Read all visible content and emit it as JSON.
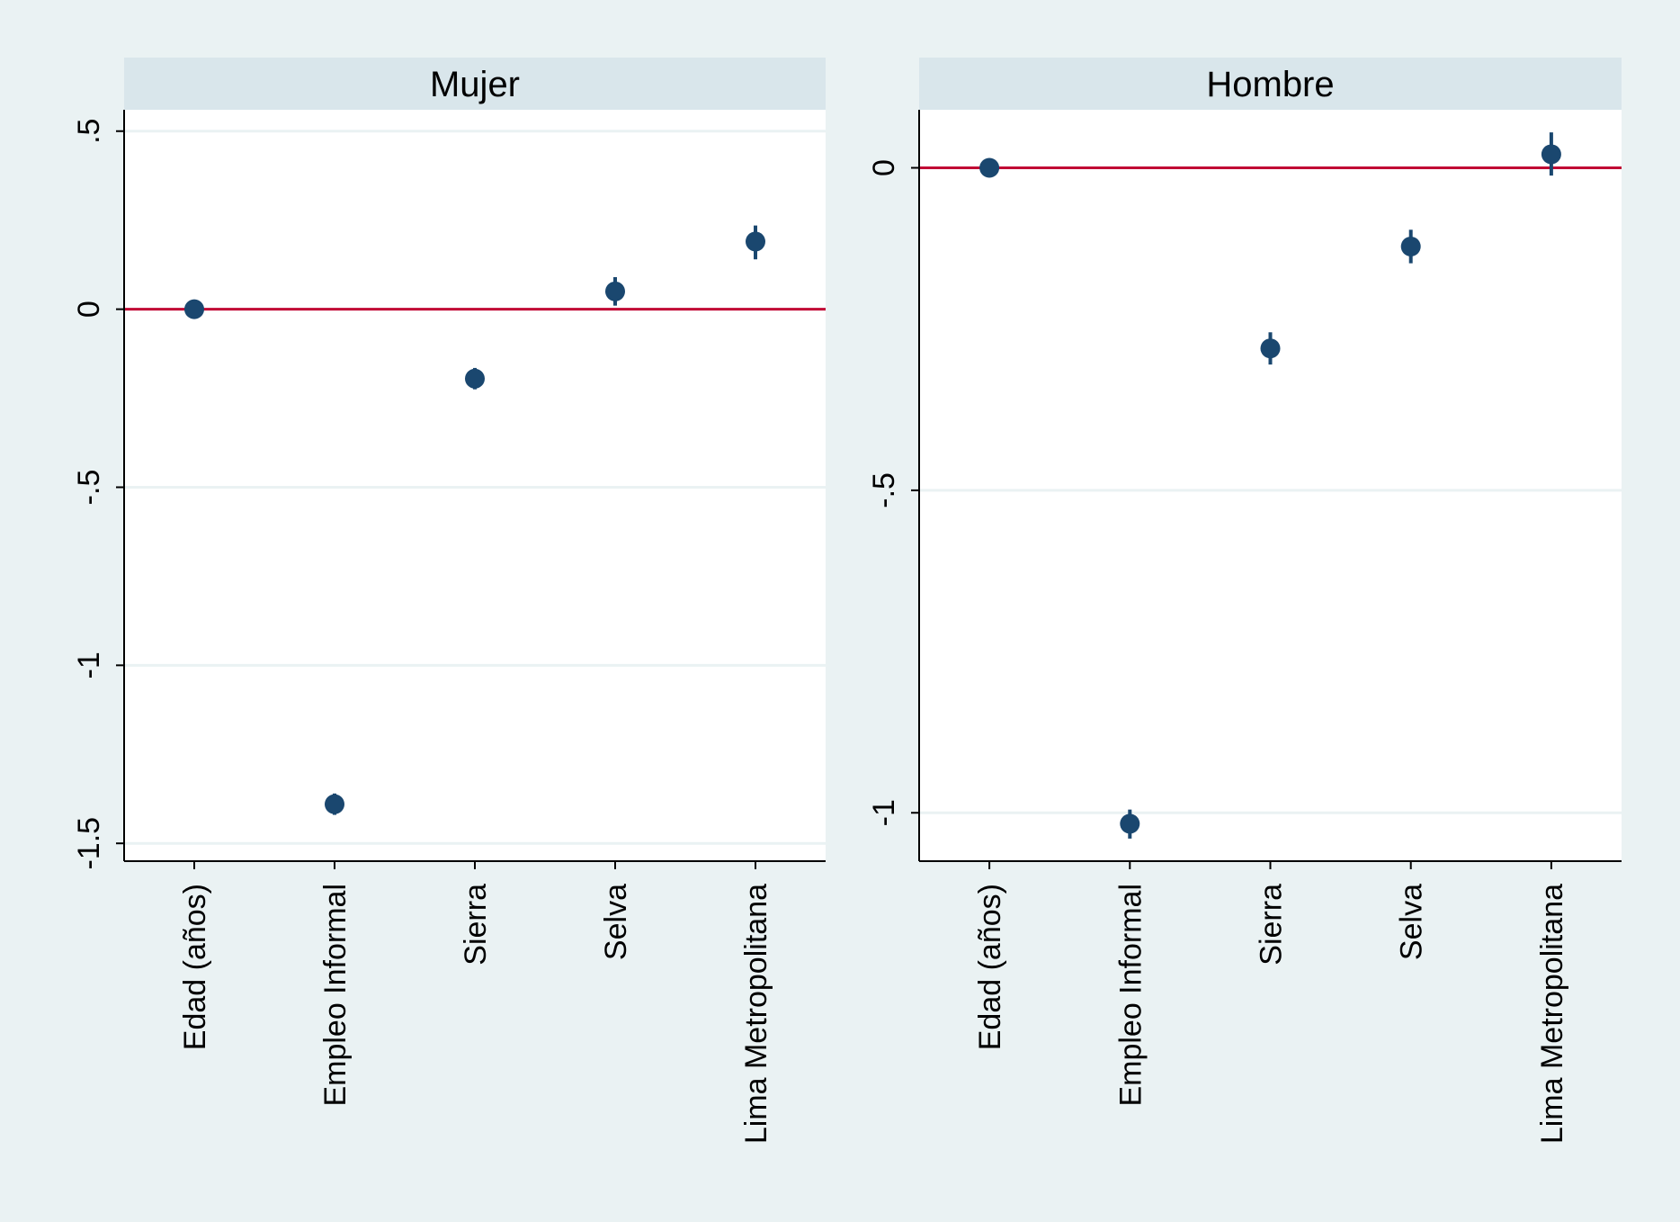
{
  "colors": {
    "background": "#eaf2f3",
    "plot_region": "#ffffff",
    "strip": "#d9e6eb",
    "gridline": "#eaf2f3",
    "marker": "#1a476f",
    "reference_line": "#c10534",
    "axis": "#000000"
  },
  "chart_data": [
    {
      "type": "scatter",
      "title": "Mujer",
      "categories": [
        "Edad (años)",
        "Empleo Informal",
        "Sierra",
        "Selva",
        "Lima Metropolitana"
      ],
      "values": [
        0.0,
        -1.39,
        -0.195,
        0.05,
        0.19
      ],
      "ci_low": [
        -0.005,
        -1.42,
        -0.225,
        0.01,
        0.14
      ],
      "ci_high": [
        0.005,
        -1.36,
        -0.165,
        0.09,
        0.235
      ],
      "reference_line": 0,
      "ylim": [
        -1.55,
        0.56
      ],
      "yticks": [
        0.5,
        0,
        -0.5,
        -1,
        -1.5
      ],
      "ytick_labels": [
        ".5",
        "0",
        "-.5",
        "-1",
        "-1.5"
      ],
      "grid": true
    },
    {
      "type": "scatter",
      "title": "Hombre",
      "categories": [
        "Edad (años)",
        "Empleo Informal",
        "Sierra",
        "Selva",
        "Lima Metropolitana"
      ],
      "values": [
        0.0,
        -1.017,
        -0.28,
        -0.122,
        0.021
      ],
      "ci_low": [
        -0.004,
        -1.04,
        -0.305,
        -0.148,
        -0.012
      ],
      "ci_high": [
        0.004,
        -0.995,
        -0.255,
        -0.096,
        0.055
      ],
      "reference_line": 0,
      "ylim": [
        -1.075,
        0.09
      ],
      "yticks": [
        0,
        -0.5,
        -1
      ],
      "ytick_labels": [
        "0",
        "-.5",
        "-1"
      ],
      "grid": true
    }
  ]
}
